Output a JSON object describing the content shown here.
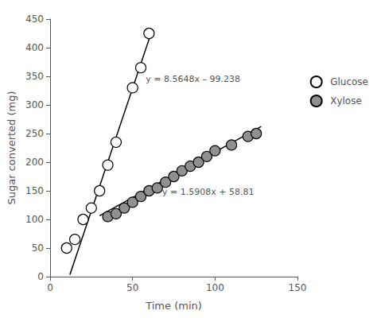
{
  "chart_data": {
    "type": "scatter",
    "xlabel": "Time (min)",
    "ylabel": "Sugar converted (mg)",
    "xlim": [
      0,
      150
    ],
    "xticks": [
      0,
      50,
      100,
      150
    ],
    "ylim": [
      0,
      450
    ],
    "yticks": [
      0,
      50,
      100,
      150,
      200,
      250,
      300,
      350,
      400,
      450
    ],
    "grid": false,
    "legend": "right",
    "series": [
      {
        "name": "Glucose",
        "type": "scatter",
        "marker": "circle",
        "color": "#ffffff",
        "x": [
          10,
          15,
          20,
          25,
          30,
          35,
          40,
          50,
          55,
          60
        ],
        "values": [
          50,
          65,
          100,
          120,
          150,
          195,
          235,
          330,
          365,
          425
        ]
      },
      {
        "name": "Xylose",
        "type": "scatter",
        "marker": "circle",
        "color": "#909090",
        "x": [
          35,
          40,
          45,
          50,
          55,
          60,
          65,
          70,
          75,
          80,
          85,
          90,
          95,
          100,
          110,
          120,
          125
        ],
        "values": [
          105,
          110,
          120,
          130,
          140,
          150,
          155,
          165,
          175,
          185,
          193,
          200,
          210,
          220,
          230,
          245,
          250
        ]
      },
      {
        "type": "line",
        "line_style": "solid",
        "color": "#000000",
        "x": [
          12,
          62
        ],
        "values": [
          3.5396,
          431.7796
        ]
      },
      {
        "type": "line",
        "line_style": "solid",
        "color": "#000000",
        "x": [
          30,
          128
        ],
        "values": [
          106.534,
          262.4324
        ]
      }
    ],
    "annotations": [
      {
        "text": "y = 8.5648x – 99.238",
        "x": 58,
        "y": 345
      },
      {
        "text": "y = 1.5908x + 58.81",
        "x": 68,
        "y": 148
      }
    ]
  }
}
